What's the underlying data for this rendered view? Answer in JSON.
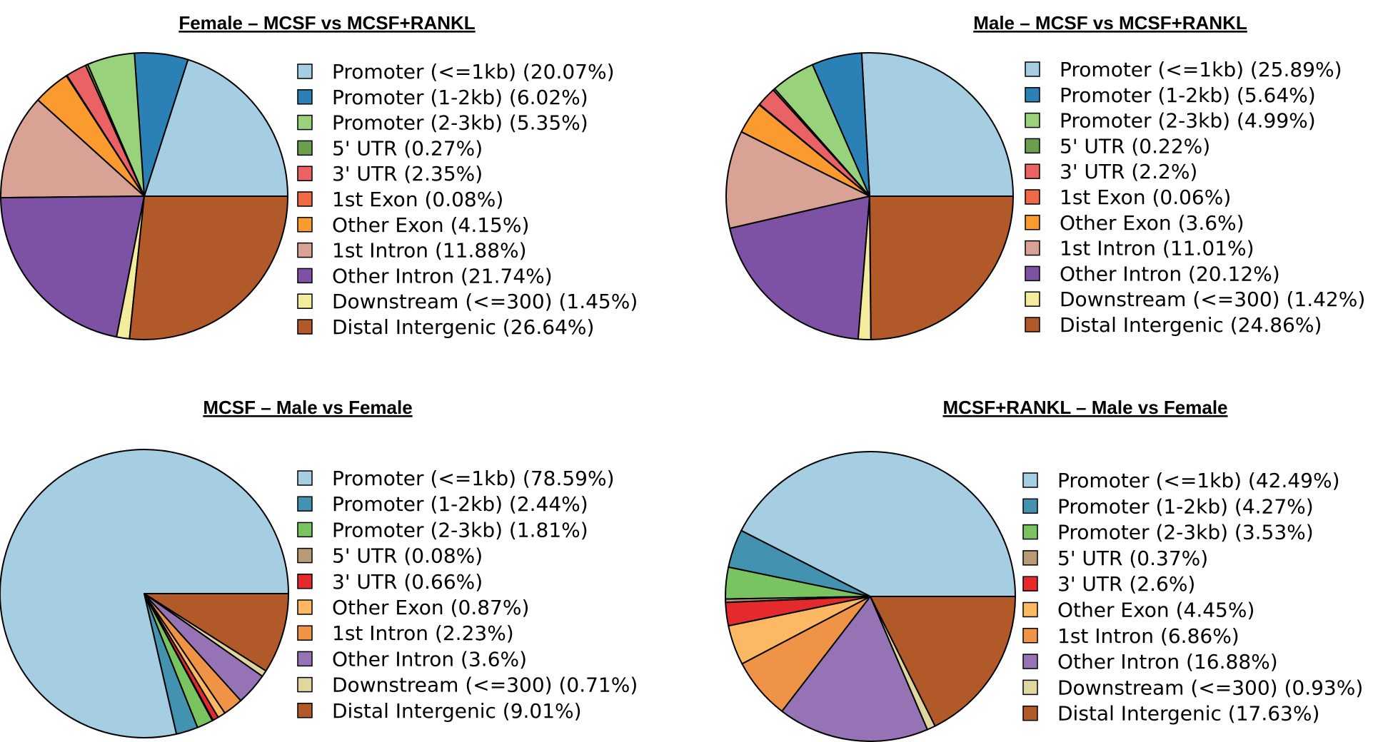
{
  "chart_data": [
    {
      "type": "pie",
      "title": "Female – MCSF vs MCSF+RANKL",
      "start": "east",
      "direction": "counterclockwise",
      "legend_position": "right",
      "categories": [
        "Promoter (<=1kb)",
        "Promoter (1-2kb)",
        "Promoter (2-3kb)",
        "5' UTR",
        "3' UTR",
        "1st Exon",
        "Other Exon",
        "1st Intron",
        "Other Intron",
        "Downstream (<=300)",
        "Distal Intergenic"
      ],
      "values": [
        20.07,
        6.02,
        5.35,
        0.27,
        2.35,
        0.08,
        4.15,
        11.88,
        21.74,
        1.45,
        26.64
      ],
      "labels": [
        "Promoter (<=1kb) (20.07%)",
        "Promoter (1-2kb) (6.02%)",
        "Promoter (2-3kb) (5.35%)",
        "5' UTR (0.27%)",
        "3' UTR (2.35%)",
        "1st Exon (0.08%)",
        "Other Exon (4.15%)",
        "1st Intron (11.88%)",
        "Other Intron (21.74%)",
        "Downstream (<=300) (1.45%)",
        "Distal Intergenic (26.64%)"
      ],
      "colors": [
        "#a6cee3",
        "#2b80b6",
        "#98d27a",
        "#6aa04b",
        "#eb6265",
        "#ef6b47",
        "#fb9a2f",
        "#d8a295",
        "#7d52a4",
        "#f2ec9c",
        "#b15928"
      ]
    },
    {
      "type": "pie",
      "title": "Male – MCSF vs MCSF+RANKL",
      "start": "east",
      "direction": "counterclockwise",
      "legend_position": "right",
      "categories": [
        "Promoter (<=1kb)",
        "Promoter (1-2kb)",
        "Promoter (2-3kb)",
        "5' UTR",
        "3' UTR",
        "1st Exon",
        "Other Exon",
        "1st Intron",
        "Other Intron",
        "Downstream (<=300)",
        "Distal Intergenic"
      ],
      "values": [
        25.89,
        5.64,
        4.99,
        0.22,
        2.2,
        0.06,
        3.6,
        11.01,
        20.12,
        1.42,
        24.86
      ],
      "labels": [
        "Promoter (<=1kb) (25.89%)",
        "Promoter (1-2kb) (5.64%)",
        "Promoter (2-3kb) (4.99%)",
        "5' UTR (0.22%)",
        "3' UTR (2.2%)",
        "1st Exon (0.06%)",
        "Other Exon (3.6%)",
        "1st Intron (11.01%)",
        "Other Intron (20.12%)",
        "Downstream (<=300) (1.42%)",
        "Distal Intergenic (24.86%)"
      ],
      "colors": [
        "#a6cee3",
        "#2b80b6",
        "#98d27a",
        "#6aa04b",
        "#eb6265",
        "#ef6b47",
        "#fb9a2f",
        "#d8a295",
        "#7d52a4",
        "#f2ec9c",
        "#b15928"
      ]
    },
    {
      "type": "pie",
      "title": "MCSF – Male vs Female",
      "start": "east",
      "direction": "counterclockwise",
      "legend_position": "right",
      "categories": [
        "Promoter (<=1kb)",
        "Promoter (1-2kb)",
        "Promoter (2-3kb)",
        "5' UTR",
        "3' UTR",
        "Other Exon",
        "1st Intron",
        "Other Intron",
        "Downstream (<=300)",
        "Distal Intergenic"
      ],
      "values": [
        78.59,
        2.44,
        1.81,
        0.08,
        0.66,
        0.87,
        2.23,
        3.6,
        0.71,
        9.01
      ],
      "labels": [
        "Promoter (<=1kb) (78.59%)",
        "Promoter (1-2kb) (2.44%)",
        "Promoter (2-3kb) (1.81%)",
        "5' UTR (0.08%)",
        "3' UTR (0.66%)",
        "Other Exon (0.87%)",
        "1st Intron (2.23%)",
        "Other Intron (3.6%)",
        "Downstream (<=300) (0.71%)",
        "Distal Intergenic (9.01%)"
      ],
      "colors": [
        "#a6cee3",
        "#4393b0",
        "#79c360",
        "#b89b74",
        "#e42a2d",
        "#fdb863",
        "#ef9447",
        "#9673b5",
        "#dfd79e",
        "#b15928"
      ]
    },
    {
      "type": "pie",
      "title": "MCSF+RANKL – Male vs Female",
      "start": "east",
      "direction": "counterclockwise",
      "legend_position": "right",
      "categories": [
        "Promoter (<=1kb)",
        "Promoter (1-2kb)",
        "Promoter (2-3kb)",
        "5' UTR",
        "3' UTR",
        "Other Exon",
        "1st Intron",
        "Other Intron",
        "Downstream (<=300)",
        "Distal Intergenic"
      ],
      "values": [
        42.49,
        4.27,
        3.53,
        0.37,
        2.6,
        4.45,
        6.86,
        16.88,
        0.93,
        17.63
      ],
      "labels": [
        "Promoter (<=1kb) (42.49%)",
        "Promoter (1-2kb) (4.27%)",
        "Promoter (2-3kb) (3.53%)",
        "5' UTR (0.37%)",
        "3' UTR (2.6%)",
        "Other Exon (4.45%)",
        "1st Intron (6.86%)",
        "Other Intron (16.88%)",
        "Downstream (<=300) (0.93%)",
        "Distal Intergenic (17.63%)"
      ],
      "colors": [
        "#a6cee3",
        "#4393b0",
        "#79c360",
        "#b89b74",
        "#e42a2d",
        "#fdb863",
        "#ef9447",
        "#9673b5",
        "#dfd79e",
        "#b15928"
      ]
    }
  ]
}
